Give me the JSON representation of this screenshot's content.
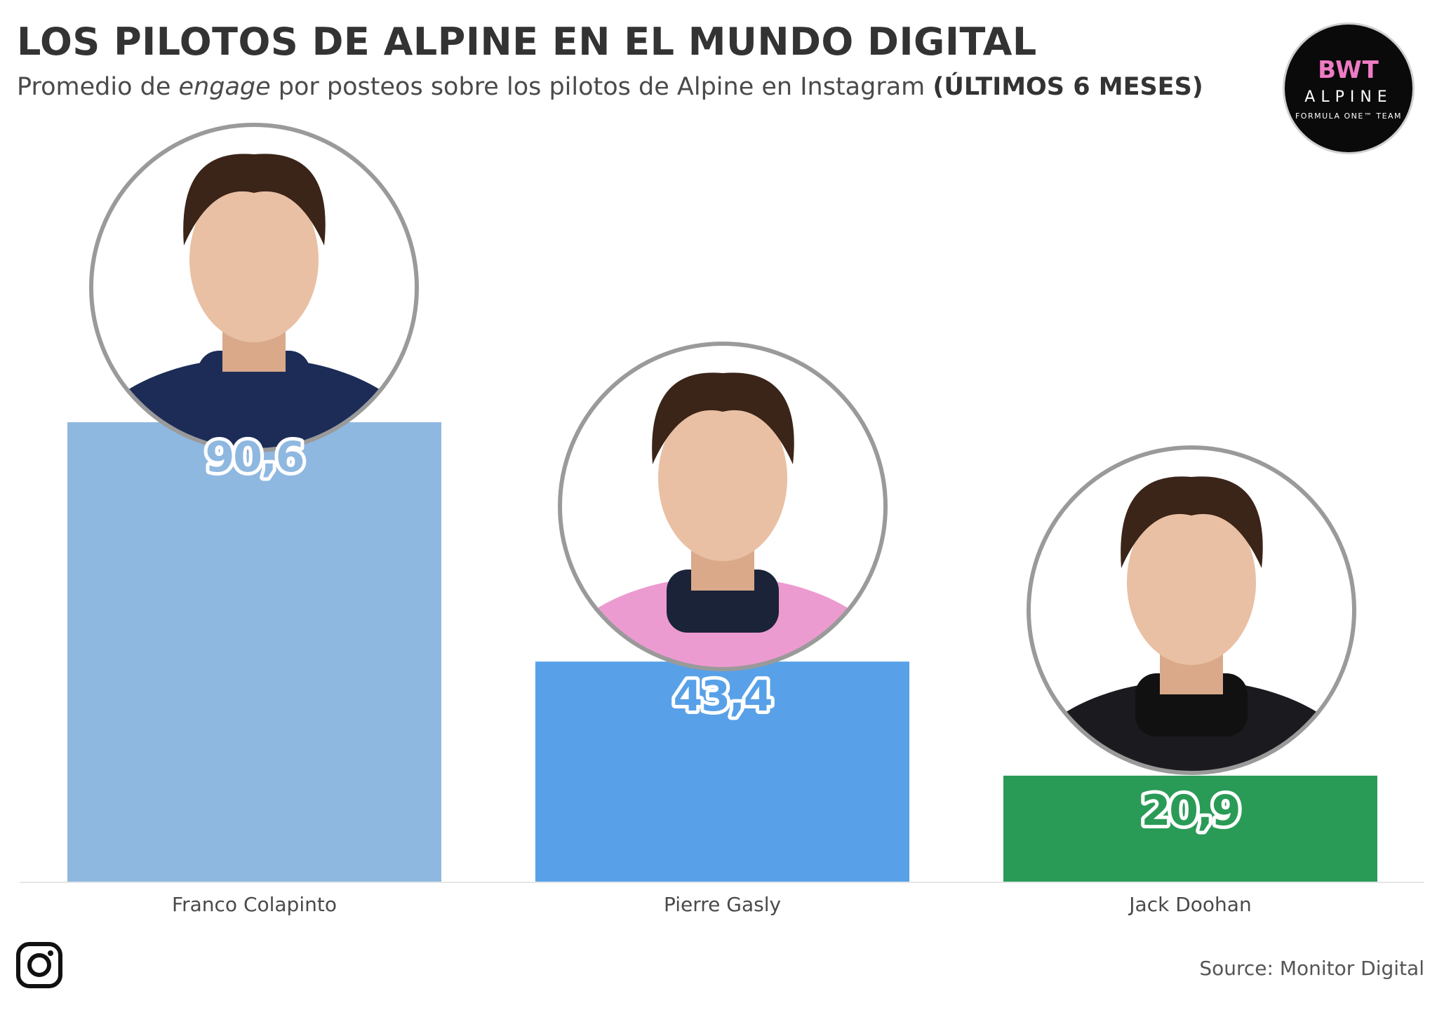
{
  "header": {
    "title": "LOS PILOTOS DE ALPINE EN EL MUNDO DIGITAL",
    "subtitle_pre": "Promedio de ",
    "subtitle_em": "engage",
    "subtitle_mid": " por posteos sobre los pilotos de Alpine en Instagram ",
    "subtitle_bold": "(ÚLTIMOS 6 MESES)"
  },
  "logo": {
    "line1": "BWT",
    "line2": "ALPINE",
    "line3": "FORMULA ONE™ TEAM"
  },
  "chart_data": {
    "type": "bar",
    "categories": [
      "Franco Colapinto",
      "Pierre Gasly",
      "Jack Doohan"
    ],
    "values": [
      90.6,
      43.4,
      20.9
    ],
    "value_labels": [
      "90,6",
      "43,4",
      "20,9"
    ],
    "colors": [
      "#8fb8e0",
      "#58a1e8",
      "#2a9b56"
    ],
    "label_colors": [
      "#8fb8e0",
      "#58a1e8",
      "#2a9b56"
    ],
    "ylim": [
      0,
      100
    ],
    "grid": false,
    "legend": "none"
  },
  "footer": {
    "icon": "instagram-icon",
    "source": "Source: Monitor Digital"
  }
}
